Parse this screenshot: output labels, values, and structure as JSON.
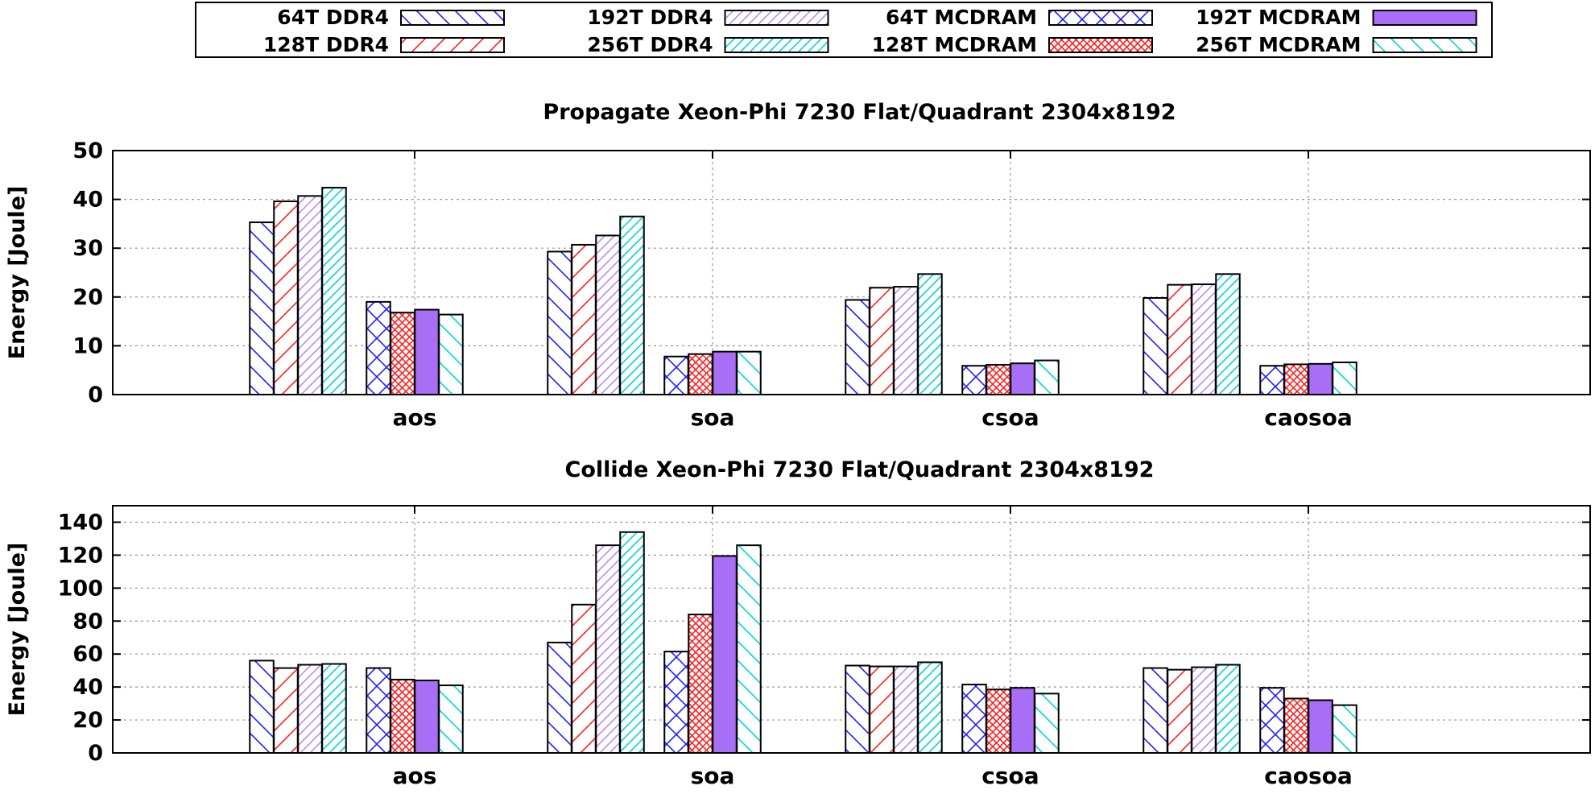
{
  "legend": {
    "placement": "top-center",
    "entries": [
      {
        "label": "64T DDR4",
        "color": "#1f1fff",
        "pattern": "backslash",
        "fill": "none"
      },
      {
        "label": "128T DDR4",
        "color": "#ff2020",
        "pattern": "slash",
        "fill": "none"
      },
      {
        "label": "192T DDR4",
        "color": "#b98ff0",
        "pattern": "slash-dense",
        "fill": "none"
      },
      {
        "label": "256T DDR4",
        "color": "#00d7d7",
        "pattern": "slash-dense",
        "fill": "none"
      },
      {
        "label": "64T MCDRAM",
        "color": "#1f1fff",
        "pattern": "cross",
        "fill": "none"
      },
      {
        "label": "128T MCDRAM",
        "color": "#ff2020",
        "pattern": "crosshatch",
        "fill": "none"
      },
      {
        "label": "192T MCDRAM",
        "color": "#a86ef5",
        "pattern": "solid",
        "fill": "#a86ef5"
      },
      {
        "label": "256T MCDRAM",
        "color": "#00d7d7",
        "pattern": "backslash",
        "fill": "none"
      }
    ]
  },
  "chart_data": [
    {
      "type": "bar",
      "title": "Propagate Xeon-Phi 7230 Flat/Quadrant 2304x8192",
      "xlabel": "",
      "ylabel": "Energy [Joule]",
      "ylim": [
        0,
        50
      ],
      "yticks": [
        0,
        10,
        20,
        30,
        40,
        50
      ],
      "grid": true,
      "categories": [
        "aos",
        "soa",
        "csoa",
        "caosoa"
      ],
      "series": [
        {
          "name": "64T DDR4",
          "values": [
            35.3,
            29.3,
            19.4,
            19.8
          ]
        },
        {
          "name": "128T DDR4",
          "values": [
            39.6,
            30.7,
            21.9,
            22.5
          ]
        },
        {
          "name": "192T DDR4",
          "values": [
            40.7,
            32.6,
            22.1,
            22.6
          ]
        },
        {
          "name": "256T DDR4",
          "values": [
            42.4,
            36.5,
            24.7,
            24.7
          ]
        },
        {
          "name": "64T MCDRAM",
          "values": [
            19.0,
            7.8,
            5.9,
            5.9
          ]
        },
        {
          "name": "128T MCDRAM",
          "values": [
            16.8,
            8.3,
            6.1,
            6.2
          ]
        },
        {
          "name": "192T MCDRAM",
          "values": [
            17.4,
            8.8,
            6.4,
            6.3
          ]
        },
        {
          "name": "256T MCDRAM",
          "values": [
            16.4,
            8.8,
            7.0,
            6.6
          ]
        }
      ]
    },
    {
      "type": "bar",
      "title": "Collide Xeon-Phi 7230 Flat/Quadrant 2304x8192",
      "xlabel": "",
      "ylabel": "Energy [Joule]",
      "ylim": [
        0,
        150
      ],
      "yticks": [
        0,
        20,
        40,
        60,
        80,
        100,
        120,
        140
      ],
      "grid": true,
      "categories": [
        "aos",
        "soa",
        "csoa",
        "caosoa"
      ],
      "series": [
        {
          "name": "64T DDR4",
          "values": [
            56.0,
            67.0,
            53.0,
            51.5
          ]
        },
        {
          "name": "128T DDR4",
          "values": [
            51.5,
            90.0,
            52.5,
            50.5
          ]
        },
        {
          "name": "192T DDR4",
          "values": [
            53.5,
            126.0,
            52.5,
            52.0
          ]
        },
        {
          "name": "256T DDR4",
          "values": [
            54.0,
            134.0,
            55.0,
            53.5
          ]
        },
        {
          "name": "64T MCDRAM",
          "values": [
            51.5,
            61.5,
            41.5,
            39.5
          ]
        },
        {
          "name": "128T MCDRAM",
          "values": [
            44.5,
            84.0,
            38.5,
            33.0
          ]
        },
        {
          "name": "192T MCDRAM",
          "values": [
            44.0,
            119.5,
            39.5,
            32.0
          ]
        },
        {
          "name": "256T MCDRAM",
          "values": [
            41.0,
            126.0,
            36.0,
            29.0
          ]
        }
      ]
    }
  ]
}
